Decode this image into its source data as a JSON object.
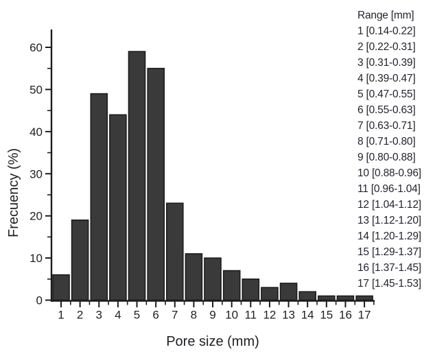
{
  "chart_data": {
    "type": "bar",
    "categories": [
      "1",
      "2",
      "3",
      "4",
      "5",
      "6",
      "7",
      "8",
      "9",
      "10",
      "11",
      "12",
      "13",
      "14",
      "15",
      "16",
      "17"
    ],
    "values": [
      6,
      19,
      49,
      44,
      59,
      55,
      23,
      11,
      10,
      7,
      5,
      3,
      4,
      2,
      1,
      1,
      1
    ],
    "title": "",
    "xlabel": "Pore size (mm)",
    "ylabel": "Frecuency (%)",
    "ylim": [
      0,
      64
    ],
    "yticks": [
      0,
      10,
      20,
      30,
      40,
      50,
      60
    ],
    "y_minor_ticks": [
      5,
      15,
      25,
      35,
      45,
      55
    ],
    "x_minor_step": 0.5,
    "grid": false,
    "legend_position": "right",
    "bar_color": "#3a3a3a",
    "bar_border_color": "#1c1c1c",
    "axis_color": "#1c1c1c",
    "text_color": "#1f1f23"
  },
  "legend": {
    "header": "Range [mm]",
    "entries": [
      "1 [0.14-0.22]",
      "2 [0.22-0.31]",
      "3 [0.31-0.39]",
      "4 [0.39-0.47]",
      "5 [0.47-0.55]",
      "6 [0.55-0.63]",
      "7 [0.63-0.71]",
      "8 [0.71-0.80]",
      "9 [0.80-0.88]",
      "10 [0.88-0.96]",
      "11 [0.96-1.04]",
      "12 [1.04-1.12]",
      "13 [1.12-1.20]",
      "14 [1.20-1.29]",
      "15 [1.29-1.37]",
      "16 [1.37-1.45]",
      "17 [1.45-1.53]"
    ]
  }
}
